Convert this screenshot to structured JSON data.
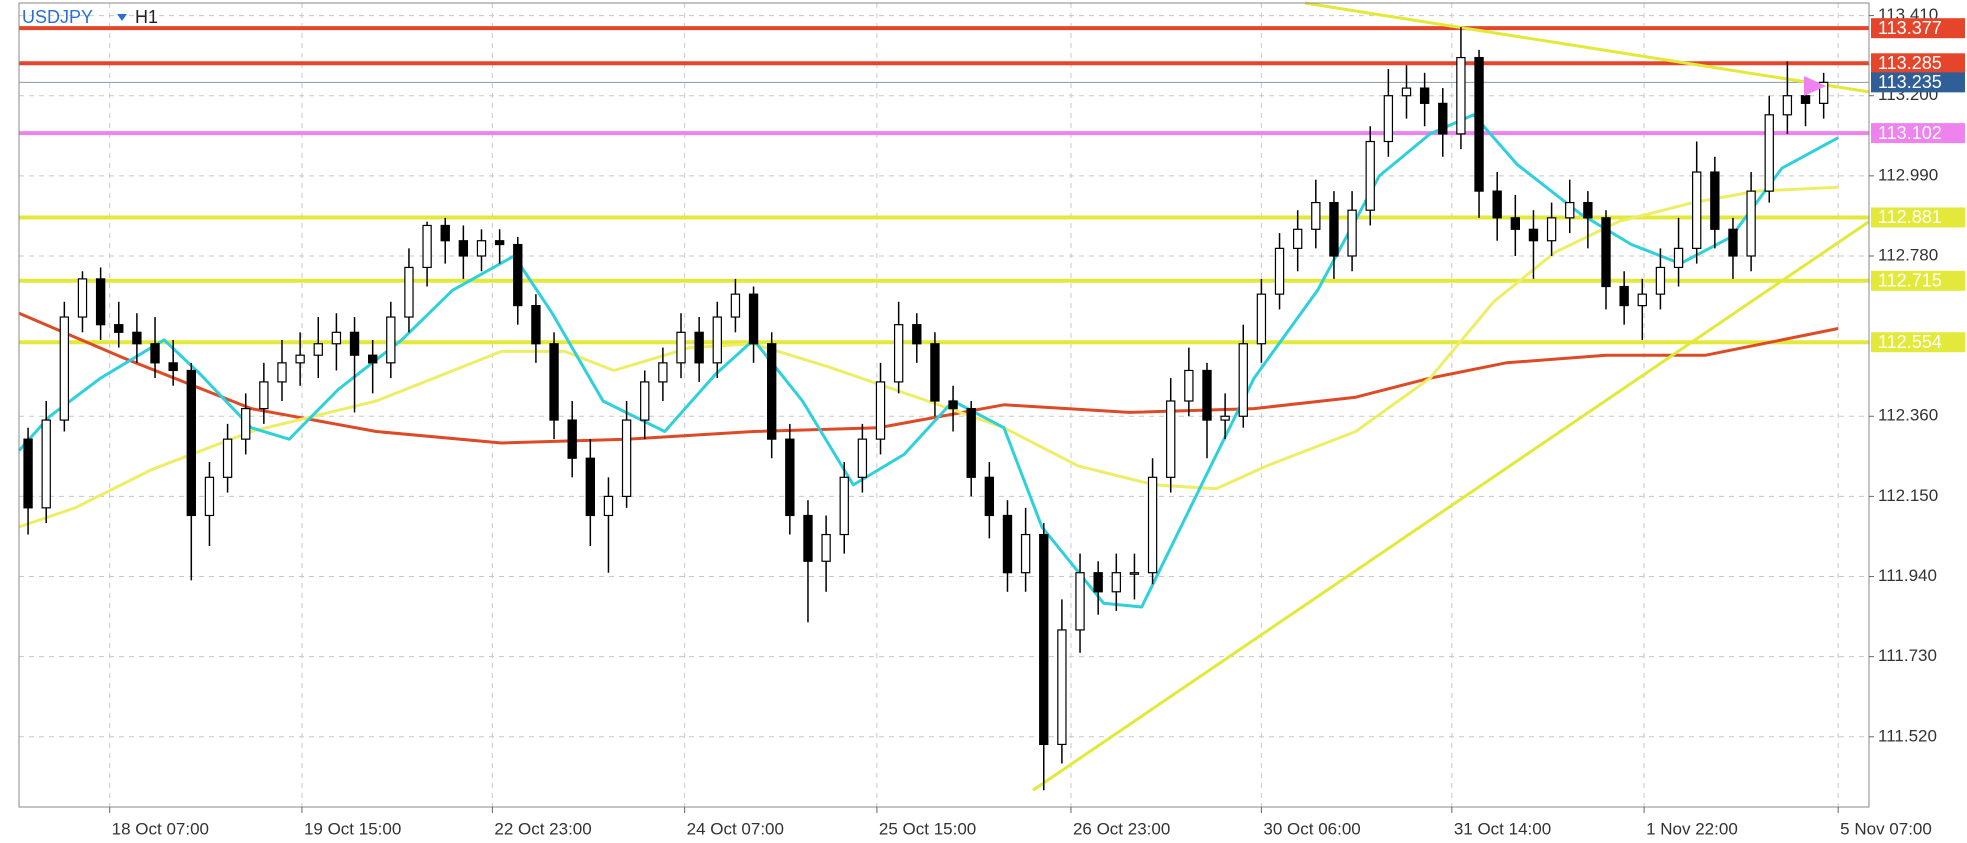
{
  "chart_data": {
    "type": "candlestick",
    "symbol": "USDJPY",
    "timeframe": "H1",
    "xlim": [
      -0.5,
      101.5
    ],
    "ylim": [
      111.336,
      113.443
    ],
    "grid": true,
    "up_color": "#ffffff",
    "down_color": "#000000",
    "xticks": [
      {
        "value": 4.5,
        "label": "18 Oct 07:00"
      },
      {
        "value": 15.1,
        "label": "19 Oct 15:00"
      },
      {
        "value": 25.6,
        "label": "22 Oct 23:00"
      },
      {
        "value": 36.2,
        "label": "24 Oct 07:00"
      },
      {
        "value": 46.8,
        "label": "25 Oct 15:00"
      },
      {
        "value": 57.5,
        "label": "26 Oct 23:00"
      },
      {
        "value": 68.0,
        "label": "30 Oct 06:00"
      },
      {
        "value": 78.5,
        "label": "31 Oct 14:00"
      },
      {
        "value": 89.1,
        "label": "1 Nov 22:00"
      },
      {
        "value": 99.8,
        "label": "5 Nov 07:00"
      }
    ],
    "yticks": [
      {
        "value": 113.41,
        "label": "113.410"
      },
      {
        "value": 113.2,
        "label": "113.200"
      },
      {
        "value": 112.99,
        "label": "112.990"
      },
      {
        "value": 112.78,
        "label": "112.780"
      },
      {
        "value": 112.36,
        "label": "112.360"
      },
      {
        "value": 112.15,
        "label": "112.150"
      },
      {
        "value": 111.94,
        "label": "111.940"
      },
      {
        "value": 111.73,
        "label": "111.730"
      },
      {
        "value": 111.52,
        "label": "111.520"
      }
    ],
    "ohlc": [
      [
        112.3,
        112.33,
        112.05,
        112.12
      ],
      [
        112.12,
        112.4,
        112.08,
        112.35
      ],
      [
        112.35,
        112.66,
        112.32,
        112.62
      ],
      [
        112.62,
        112.74,
        112.58,
        112.72
      ],
      [
        112.72,
        112.75,
        112.56,
        112.6
      ],
      [
        112.6,
        112.66,
        112.54,
        112.58
      ],
      [
        112.58,
        112.63,
        112.5,
        112.55
      ],
      [
        112.55,
        112.62,
        112.46,
        112.5
      ],
      [
        112.5,
        112.56,
        112.44,
        112.48
      ],
      [
        112.48,
        112.5,
        111.93,
        112.1
      ],
      [
        112.1,
        112.24,
        112.02,
        112.2
      ],
      [
        112.2,
        112.34,
        112.16,
        112.3
      ],
      [
        112.3,
        112.42,
        112.26,
        112.38
      ],
      [
        112.38,
        112.5,
        112.34,
        112.45
      ],
      [
        112.45,
        112.56,
        112.4,
        112.5
      ],
      [
        112.5,
        112.58,
        112.44,
        112.52
      ],
      [
        112.52,
        112.62,
        112.46,
        112.55
      ],
      [
        112.55,
        112.63,
        112.48,
        112.58
      ],
      [
        112.58,
        112.62,
        112.37,
        112.52
      ],
      [
        112.52,
        112.56,
        112.42,
        112.5
      ],
      [
        112.5,
        112.66,
        112.46,
        112.62
      ],
      [
        112.62,
        112.8,
        112.58,
        112.75
      ],
      [
        112.75,
        112.87,
        112.7,
        112.86
      ],
      [
        112.86,
        112.88,
        112.76,
        112.82
      ],
      [
        112.82,
        112.86,
        112.72,
        112.78
      ],
      [
        112.78,
        112.85,
        112.74,
        112.82
      ],
      [
        112.82,
        112.85,
        112.76,
        112.81
      ],
      [
        112.81,
        112.83,
        112.6,
        112.65
      ],
      [
        112.65,
        112.68,
        112.5,
        112.55
      ],
      [
        112.55,
        112.58,
        112.3,
        112.35
      ],
      [
        112.35,
        112.4,
        112.2,
        112.25
      ],
      [
        112.25,
        112.3,
        112.02,
        112.1
      ],
      [
        112.1,
        112.2,
        111.95,
        112.15
      ],
      [
        112.15,
        112.4,
        112.12,
        112.35
      ],
      [
        112.35,
        112.48,
        112.3,
        112.45
      ],
      [
        112.45,
        112.54,
        112.4,
        112.5
      ],
      [
        112.5,
        112.63,
        112.46,
        112.58
      ],
      [
        112.58,
        112.62,
        112.45,
        112.5
      ],
      [
        112.5,
        112.66,
        112.46,
        112.62
      ],
      [
        112.62,
        112.72,
        112.58,
        112.68
      ],
      [
        112.68,
        112.7,
        112.5,
        112.55
      ],
      [
        112.55,
        112.58,
        112.25,
        112.3
      ],
      [
        112.3,
        112.34,
        112.05,
        112.1
      ],
      [
        112.1,
        112.14,
        111.82,
        111.98
      ],
      [
        111.98,
        112.1,
        111.9,
        112.05
      ],
      [
        112.05,
        112.24,
        112.0,
        112.2
      ],
      [
        112.2,
        112.34,
        112.16,
        112.3
      ],
      [
        112.3,
        112.5,
        112.26,
        112.45
      ],
      [
        112.45,
        112.66,
        112.42,
        112.6
      ],
      [
        112.6,
        112.63,
        112.5,
        112.55
      ],
      [
        112.55,
        112.58,
        112.36,
        112.4
      ],
      [
        112.4,
        112.44,
        112.32,
        112.38
      ],
      [
        112.38,
        112.4,
        112.15,
        112.2
      ],
      [
        112.2,
        112.24,
        112.04,
        112.1
      ],
      [
        112.1,
        112.14,
        111.9,
        111.95
      ],
      [
        111.95,
        112.12,
        111.9,
        112.05
      ],
      [
        112.05,
        112.08,
        111.38,
        111.5
      ],
      [
        111.5,
        111.88,
        111.45,
        111.8
      ],
      [
        111.8,
        112.0,
        111.74,
        111.95
      ],
      [
        111.95,
        111.98,
        111.84,
        111.9
      ],
      [
        111.9,
        112.0,
        111.85,
        111.95
      ],
      [
        111.95,
        112.0,
        111.88,
        111.95
      ],
      [
        111.95,
        112.25,
        111.92,
        112.2
      ],
      [
        112.2,
        112.46,
        112.16,
        112.4
      ],
      [
        112.4,
        112.54,
        112.36,
        112.48
      ],
      [
        112.48,
        112.5,
        112.25,
        112.35
      ],
      [
        112.35,
        112.42,
        112.3,
        112.36
      ],
      [
        112.36,
        112.6,
        112.33,
        112.55
      ],
      [
        112.55,
        112.72,
        112.5,
        112.68
      ],
      [
        112.68,
        112.84,
        112.64,
        112.8
      ],
      [
        112.8,
        112.9,
        112.74,
        112.85
      ],
      [
        112.85,
        112.98,
        112.8,
        112.92
      ],
      [
        112.92,
        112.95,
        112.72,
        112.78
      ],
      [
        112.78,
        112.95,
        112.74,
        112.9
      ],
      [
        112.9,
        113.12,
        112.86,
        113.08
      ],
      [
        113.08,
        113.27,
        113.04,
        113.2
      ],
      [
        113.2,
        113.28,
        113.14,
        113.22
      ],
      [
        113.22,
        113.26,
        113.12,
        113.18
      ],
      [
        113.18,
        113.22,
        113.04,
        113.1
      ],
      [
        113.1,
        113.38,
        113.06,
        113.3
      ],
      [
        113.3,
        113.32,
        112.88,
        112.95
      ],
      [
        112.95,
        113.0,
        112.82,
        112.88
      ],
      [
        112.88,
        112.94,
        112.78,
        112.85
      ],
      [
        112.85,
        112.9,
        112.72,
        112.82
      ],
      [
        112.82,
        112.92,
        112.78,
        112.88
      ],
      [
        112.88,
        112.98,
        112.84,
        112.92
      ],
      [
        112.92,
        112.95,
        112.8,
        112.88
      ],
      [
        112.88,
        112.9,
        112.64,
        112.7
      ],
      [
        112.7,
        112.74,
        112.6,
        112.65
      ],
      [
        112.65,
        112.72,
        112.56,
        112.68
      ],
      [
        112.68,
        112.8,
        112.64,
        112.75
      ],
      [
        112.75,
        112.88,
        112.7,
        112.8
      ],
      [
        112.8,
        113.08,
        112.76,
        113.0
      ],
      [
        113.0,
        113.04,
        112.8,
        112.85
      ],
      [
        112.85,
        112.88,
        112.72,
        112.78
      ],
      [
        112.78,
        113.0,
        112.74,
        112.95
      ],
      [
        112.95,
        113.2,
        112.92,
        113.15
      ],
      [
        113.15,
        113.29,
        113.1,
        113.2
      ],
      [
        113.2,
        113.24,
        113.12,
        113.18
      ],
      [
        113.18,
        113.26,
        113.14,
        113.235
      ]
    ],
    "lines": [
      {
        "color": "#dd4a26",
        "width": 3,
        "x": [
          -0.5,
          5.4,
          12.3,
          19.2,
          26.1,
          33.0,
          40.0,
          46.9,
          53.8,
          60.7,
          67.6,
          73.2,
          77.3,
          81.5,
          87.0,
          92.5,
          96.7,
          99.8
        ],
        "values": [
          112.63,
          112.51,
          112.38,
          112.32,
          112.29,
          112.3,
          112.32,
          112.33,
          112.39,
          112.37,
          112.38,
          112.41,
          112.46,
          112.5,
          112.52,
          112.52,
          112.56,
          112.59
        ]
      },
      {
        "color": "#eeee66",
        "width": 3,
        "x": [
          -0.5,
          2.6,
          6.8,
          12.3,
          19.2,
          26.1,
          29.6,
          32.3,
          36.5,
          40.0,
          44.1,
          49.6,
          53.8,
          57.9,
          62.1,
          65.5,
          68.3,
          73.2,
          77.3,
          80.8,
          84.2,
          87.7,
          91.8,
          95.3,
          99.8
        ],
        "values": [
          112.07,
          112.12,
          112.22,
          112.32,
          112.4,
          112.53,
          112.53,
          112.48,
          112.54,
          112.55,
          112.49,
          112.4,
          112.33,
          112.23,
          112.18,
          112.17,
          112.23,
          112.32,
          112.46,
          112.66,
          112.79,
          112.87,
          112.92,
          112.95,
          112.96
        ]
      },
      {
        "color": "#2ed0dc",
        "width": 3,
        "x": [
          -0.5,
          1.2,
          4.0,
          7.5,
          9.5,
          12.3,
          14.4,
          17.1,
          20.6,
          23.4,
          26.8,
          28.9,
          31.7,
          35.1,
          37.9,
          40.0,
          42.7,
          45.5,
          48.3,
          51.0,
          53.8,
          55.9,
          59.3,
          61.4,
          64.9,
          67.6,
          71.1,
          74.5,
          77.3,
          79.7,
          82.1,
          85.6,
          88.4,
          91.1,
          93.9,
          96.7,
          99.8
        ],
        "values": [
          112.27,
          112.36,
          112.46,
          112.56,
          112.47,
          112.33,
          112.3,
          112.43,
          112.56,
          112.69,
          112.78,
          112.63,
          112.4,
          112.32,
          112.47,
          112.56,
          112.4,
          112.18,
          112.26,
          112.4,
          112.33,
          112.07,
          111.87,
          111.86,
          112.2,
          112.46,
          112.69,
          112.99,
          113.1,
          113.15,
          113.02,
          112.89,
          112.81,
          112.76,
          112.83,
          113.01,
          113.09
        ]
      }
    ],
    "trendlines": [
      {
        "color": "#e3e93a",
        "x": [
          55.4,
          101.5
        ],
        "values": [
          111.38,
          112.87
        ]
      },
      {
        "color": "#e3e93a",
        "x": [
          70.4,
          101.5
        ],
        "values": [
          113.443,
          113.21
        ]
      }
    ],
    "levels": [
      {
        "value": 113.377,
        "color": "#e5452a"
      },
      {
        "value": 113.285,
        "color": "#e5452a"
      },
      {
        "value": 113.102,
        "color": "#ee82ee"
      },
      {
        "value": 112.881,
        "color": "#e3e93a"
      },
      {
        "value": 112.715,
        "color": "#e3e93a"
      },
      {
        "value": 112.554,
        "color": "#e3e93a"
      }
    ],
    "bid": {
      "value": 113.235,
      "color": "#2f5f96"
    }
  }
}
